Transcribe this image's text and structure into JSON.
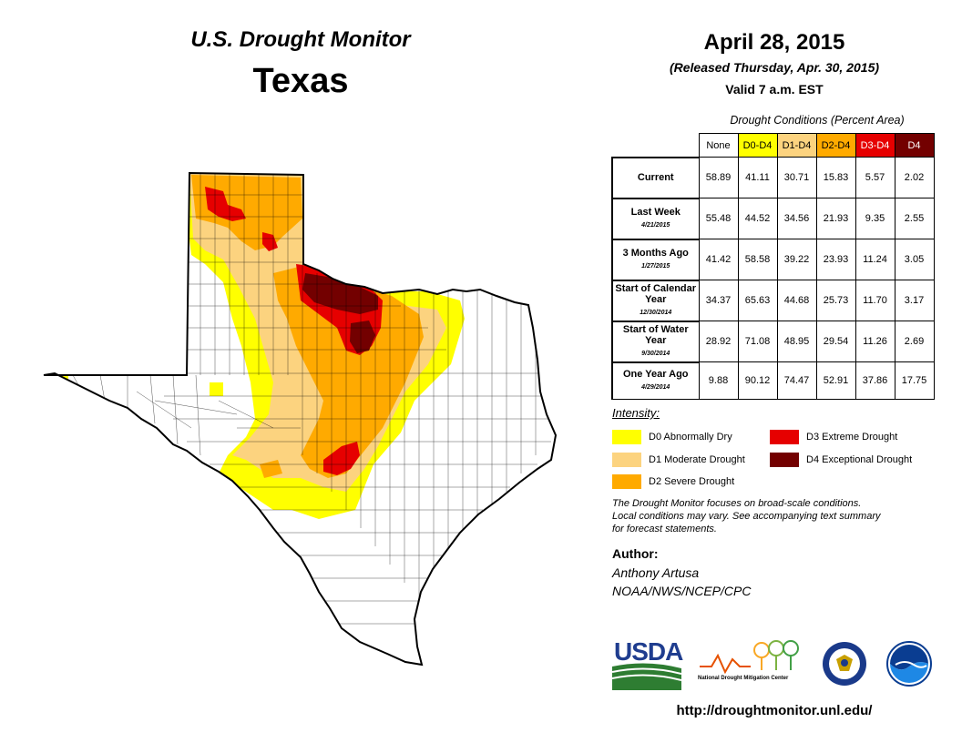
{
  "header": {
    "monitor_title": "U.S. Drought Monitor",
    "state": "Texas",
    "date": "April 28, 2015",
    "released": "(Released Thursday, Apr. 30, 2015)",
    "valid": "Valid 7 a.m. EST"
  },
  "table": {
    "caption": "Drought Conditions (Percent Area)",
    "columns": [
      "None",
      "D0-D4",
      "D1-D4",
      "D2-D4",
      "D3-D4",
      "D4"
    ],
    "rows": [
      {
        "label": "Current",
        "sublabel": "",
        "values": [
          "58.89",
          "41.11",
          "30.71",
          "15.83",
          "5.57",
          "2.02"
        ]
      },
      {
        "label": "Last Week",
        "sublabel": "4/21/2015",
        "values": [
          "55.48",
          "44.52",
          "34.56",
          "21.93",
          "9.35",
          "2.55"
        ]
      },
      {
        "label": "3 Months Ago",
        "sublabel": "1/27/2015",
        "values": [
          "41.42",
          "58.58",
          "39.22",
          "23.93",
          "11.24",
          "3.05"
        ]
      },
      {
        "label": "Start of Calendar Year",
        "sublabel": "12/30/2014",
        "values": [
          "34.37",
          "65.63",
          "44.68",
          "25.73",
          "11.70",
          "3.17"
        ]
      },
      {
        "label": "Start of Water Year",
        "sublabel": "9/30/2014",
        "values": [
          "28.92",
          "71.08",
          "48.95",
          "29.54",
          "11.26",
          "2.69"
        ]
      },
      {
        "label": "One Year Ago",
        "sublabel": "4/29/2014",
        "values": [
          "9.88",
          "90.12",
          "74.47",
          "52.91",
          "37.86",
          "17.75"
        ]
      }
    ]
  },
  "legend": {
    "heading": "Intensity:",
    "items": [
      {
        "label": "D0 Abnormally Dry",
        "color": "#ffff00"
      },
      {
        "label": "D1 Moderate Drought",
        "color": "#fcd37f"
      },
      {
        "label": "D2 Severe Drought",
        "color": "#ffaa00"
      },
      {
        "label": "D3 Extreme Drought",
        "color": "#e60000"
      },
      {
        "label": "D4 Exceptional Drought",
        "color": "#730000"
      }
    ]
  },
  "disclaimer": {
    "line1": "The Drought Monitor focuses on broad-scale conditions.",
    "line2": "Local conditions may vary. See accompanying text summary",
    "line3": "for forecast statements."
  },
  "author": {
    "heading": "Author:",
    "name": "Anthony Artusa",
    "org": "NOAA/NWS/NCEP/CPC"
  },
  "logos": {
    "usda": "USDA",
    "ndmc": "National Drought Mitigation Center"
  },
  "url": "http://droughtmonitor.unl.edu/"
}
